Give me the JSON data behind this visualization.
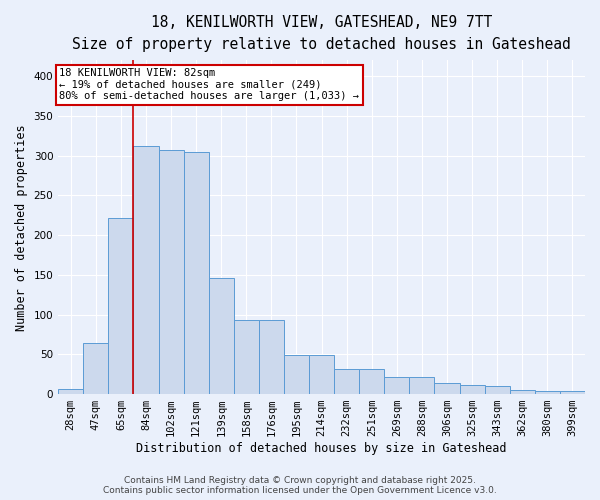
{
  "title_line1": "18, KENILWORTH VIEW, GATESHEAD, NE9 7TT",
  "title_line2": "Size of property relative to detached houses in Gateshead",
  "xlabel": "Distribution of detached houses by size in Gateshead",
  "ylabel": "Number of detached properties",
  "categories": [
    "28sqm",
    "47sqm",
    "65sqm",
    "84sqm",
    "102sqm",
    "121sqm",
    "139sqm",
    "158sqm",
    "176sqm",
    "195sqm",
    "214sqm",
    "232sqm",
    "251sqm",
    "269sqm",
    "288sqm",
    "306sqm",
    "325sqm",
    "343sqm",
    "362sqm",
    "380sqm",
    "399sqm"
  ],
  "values": [
    7,
    64,
    221,
    312,
    307,
    305,
    146,
    93,
    93,
    49,
    49,
    32,
    32,
    21,
    21,
    14,
    11,
    10,
    5,
    4,
    4
  ],
  "bar_color": "#ccd9ed",
  "bar_edge_color": "#5b9bd5",
  "red_line_x": 2.5,
  "annotation_line1": "18 KENILWORTH VIEW: 82sqm",
  "annotation_line2": "← 19% of detached houses are smaller (249)",
  "annotation_line3": "80% of semi-detached houses are larger (1,033) →",
  "annotation_box_color": "#ffffff",
  "annotation_box_edge_color": "#cc0000",
  "ylim": [
    0,
    420
  ],
  "yticks": [
    0,
    50,
    100,
    150,
    200,
    250,
    300,
    350,
    400
  ],
  "footer_line1": "Contains HM Land Registry data © Crown copyright and database right 2025.",
  "footer_line2": "Contains public sector information licensed under the Open Government Licence v3.0.",
  "background_color": "#eaf0fb",
  "plot_bg_color": "#eaf0fb",
  "grid_color": "#ffffff",
  "title_fontsize": 10.5,
  "subtitle_fontsize": 9.5,
  "axis_label_fontsize": 8.5,
  "tick_fontsize": 7.5,
  "annotation_fontsize": 7.5,
  "footer_fontsize": 6.5
}
